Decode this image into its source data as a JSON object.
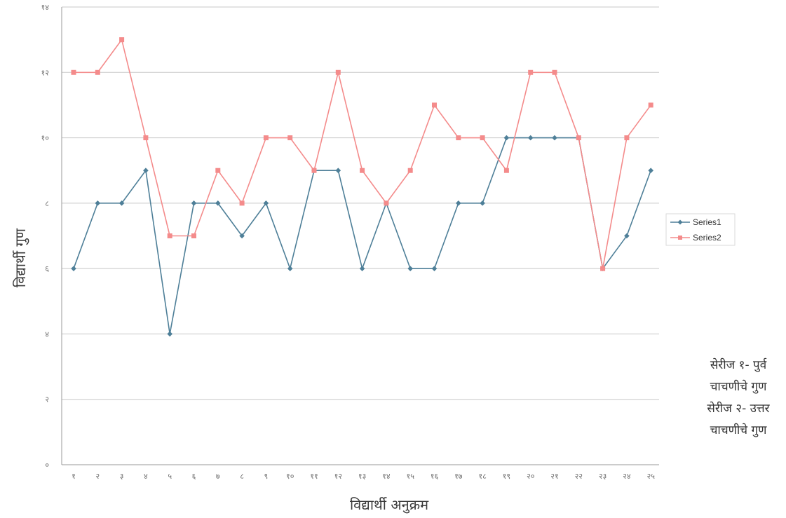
{
  "chart_data": {
    "type": "line",
    "title": "",
    "xlabel": "विद्यार्थी अनुक्रम",
    "ylabel": "विद्यार्थी गुण",
    "categories": [
      "१",
      "२",
      "३",
      "४",
      "५",
      "६",
      "७",
      "८",
      "९",
      "१०",
      "११",
      "१२",
      "१३",
      "१४",
      "१५",
      "१६",
      "१७",
      "१८",
      "१९",
      "२०",
      "२१",
      "२२",
      "२३",
      "२४",
      "२५"
    ],
    "y_ticks": [
      {
        "value": 0,
        "label": "०"
      },
      {
        "value": 2,
        "label": "२"
      },
      {
        "value": 4,
        "label": "४"
      },
      {
        "value": 6,
        "label": "६"
      },
      {
        "value": 8,
        "label": "८"
      },
      {
        "value": 10,
        "label": "१०"
      },
      {
        "value": 12,
        "label": "१२"
      },
      {
        "value": 14,
        "label": "१४"
      }
    ],
    "ylim": [
      0,
      14
    ],
    "grid": true,
    "legend_position": "right",
    "series": [
      {
        "name": "Series1",
        "color": "#4e7f98",
        "marker": "diamond",
        "values": [
          6,
          8,
          8,
          9,
          4,
          8,
          8,
          7,
          8,
          6,
          9,
          9,
          6,
          8,
          6,
          6,
          8,
          8,
          10,
          10,
          10,
          10,
          6,
          7,
          9
        ]
      },
      {
        "name": "Series2",
        "color": "#f48b8b",
        "marker": "square",
        "values": [
          12,
          12,
          13,
          10,
          7,
          7,
          9,
          8,
          10,
          10,
          9,
          12,
          9,
          8,
          9,
          11,
          10,
          10,
          9,
          12,
          12,
          10,
          6,
          10,
          11
        ]
      }
    ]
  },
  "side_note": {
    "lines": [
      "सेरीज १- पुर्व",
      "चाचणीचे गुण",
      "सेरीज २- उत्तर",
      "चाचणीचे गुण"
    ]
  }
}
